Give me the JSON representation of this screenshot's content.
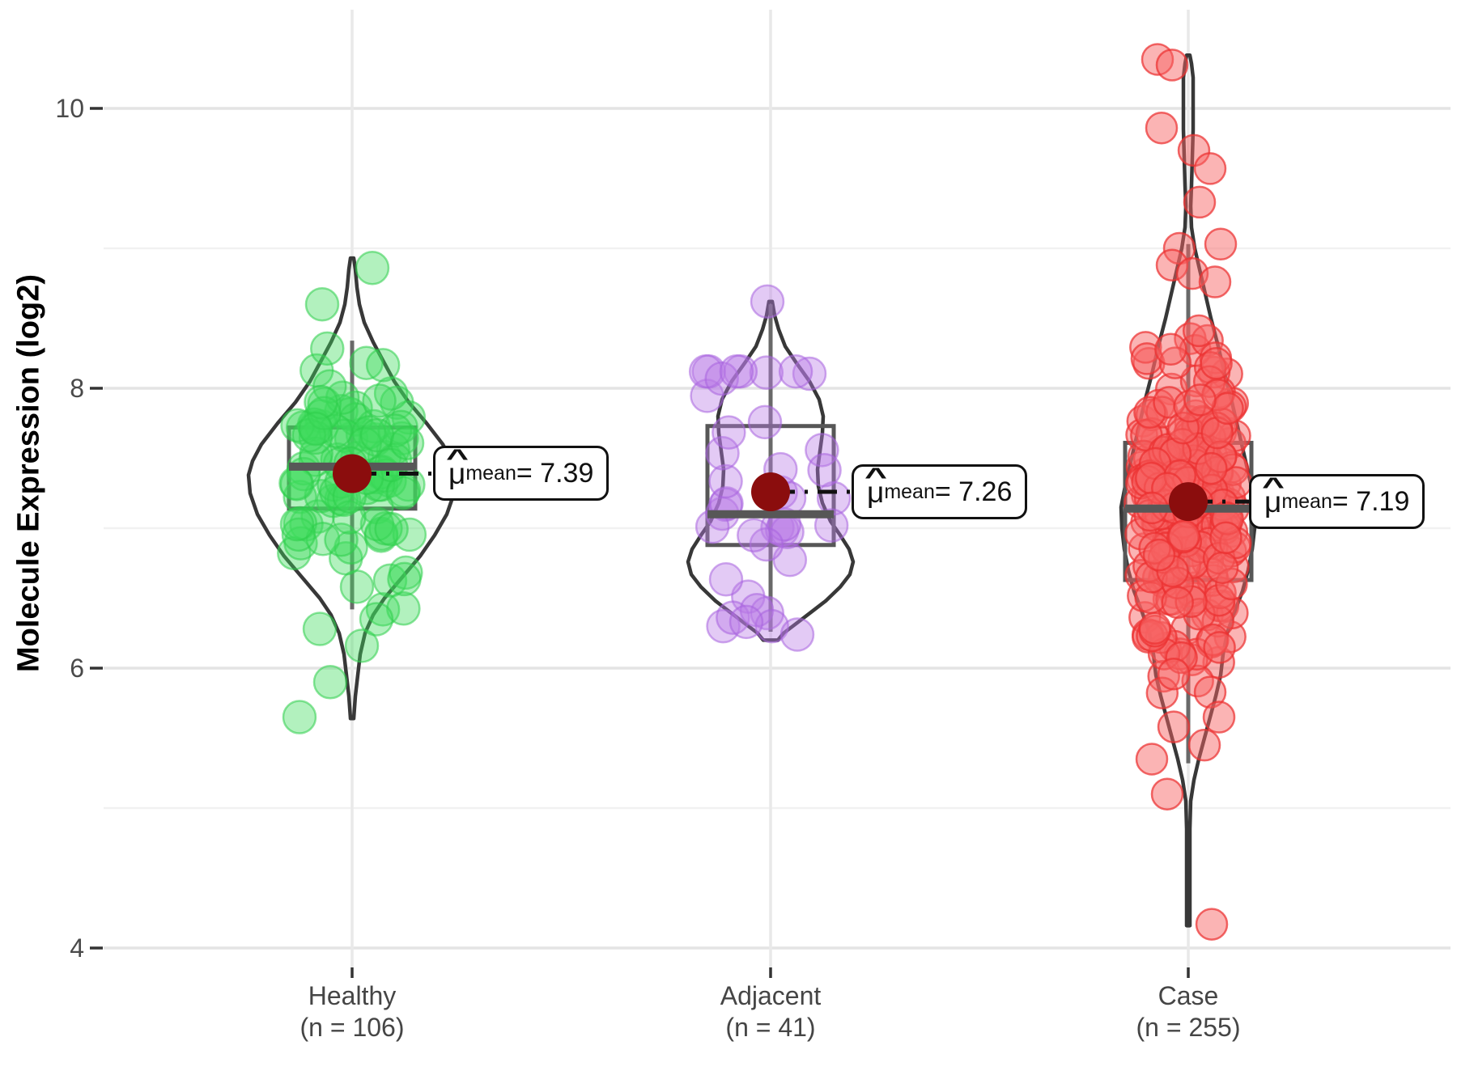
{
  "axis": {
    "y_tick_labels": [
      "10",
      "8",
      "6",
      "4"
    ],
    "y_title": "Molecule Expression (log2)"
  },
  "annotations": [
    {
      "mu": "μ",
      "hat": "^",
      "subscript": "mean",
      "value_text": " = 7.39"
    },
    {
      "mu": "μ",
      "hat": "^",
      "subscript": "mean",
      "value_text": " = 7.26"
    },
    {
      "mu": "μ",
      "hat": "^",
      "subscript": "mean",
      "value_text": " = 7.19"
    }
  ],
  "chart_data": {
    "type": "violin",
    "subtype": "violin + boxplot + jittered points + mean dot (ggstatsplot style)",
    "title": "",
    "xlabel": "",
    "ylabel": "Molecule Expression (log2)",
    "ylim": [
      3.86,
      10.71
    ],
    "y_major_ticks": [
      10,
      8,
      6,
      4
    ],
    "y_minor_gridlines": [
      9,
      7,
      5
    ],
    "grid": "horizontal major+minor light gray; vertical major at each group center; white panel",
    "legend": "none",
    "mean_dot_color": "#8B0D0D",
    "connector_color": "#111111",
    "violin_outline_color": "#383838",
    "box_color": "#575757",
    "categories": [
      "Healthy",
      "Adjacent",
      "Case"
    ],
    "groups": [
      {
        "name": "Healthy",
        "label_line1": "Healthy",
        "label_line2": "(n = 106)",
        "n": 106,
        "mean": 7.39,
        "median": 7.44,
        "q1": 7.14,
        "q3": 7.72,
        "whisker_low": 6.42,
        "whisker_high": 8.34,
        "min": 5.64,
        "max": 8.93,
        "point_fill": "rgba(62,220,92,0.40)",
        "point_stroke": "rgba(45,205,75,0.55)",
        "violin_profile": [
          [
            8.93,
            2
          ],
          [
            8.85,
            4
          ],
          [
            8.72,
            6
          ],
          [
            8.6,
            9
          ],
          [
            8.47,
            15
          ],
          [
            8.33,
            26
          ],
          [
            8.2,
            38
          ],
          [
            8.05,
            52
          ],
          [
            7.9,
            70
          ],
          [
            7.75,
            92
          ],
          [
            7.6,
            112
          ],
          [
            7.48,
            123
          ],
          [
            7.38,
            128
          ],
          [
            7.25,
            126
          ],
          [
            7.1,
            117
          ],
          [
            6.95,
            102
          ],
          [
            6.8,
            84
          ],
          [
            6.65,
            62
          ],
          [
            6.5,
            40
          ],
          [
            6.38,
            26
          ],
          [
            6.25,
            16
          ],
          [
            6.1,
            10
          ],
          [
            5.95,
            7
          ],
          [
            5.8,
            4
          ],
          [
            5.64,
            2
          ]
        ],
        "outlier_points": [
          [
            25,
            8.86
          ],
          [
            -37,
            8.6
          ],
          [
            -65,
            5.65
          ],
          [
            -27,
            5.9
          ],
          [
            12,
            6.16
          ],
          [
            -40,
            6.28
          ],
          [
            30,
            6.35
          ]
        ],
        "cloud": {
          "count": 99,
          "mean": 7.42,
          "sd": 0.42,
          "clip": [
            6.42,
            8.45
          ],
          "seed": 7
        }
      },
      {
        "name": "Adjacent",
        "label_line1": "Adjacent",
        "label_line2": "(n = 41)",
        "n": 41,
        "mean": 7.26,
        "median": 7.1,
        "q1": 6.88,
        "q3": 7.73,
        "whisker_low": 6.26,
        "whisker_high": 8.6,
        "min": 6.2,
        "max": 8.62,
        "point_fill": "rgba(186,122,230,0.40)",
        "point_stroke": "rgba(168,98,222,0.55)",
        "violin_profile": [
          [
            8.62,
            2
          ],
          [
            8.52,
            5
          ],
          [
            8.42,
            10
          ],
          [
            8.3,
            18
          ],
          [
            8.18,
            32
          ],
          [
            8.05,
            48
          ],
          [
            7.92,
            60
          ],
          [
            7.8,
            65
          ],
          [
            7.68,
            64
          ],
          [
            7.55,
            61
          ],
          [
            7.42,
            58
          ],
          [
            7.3,
            59
          ],
          [
            7.18,
            64
          ],
          [
            7.05,
            74
          ],
          [
            6.95,
            86
          ],
          [
            6.85,
            97
          ],
          [
            6.76,
            102
          ],
          [
            6.67,
            98
          ],
          [
            6.58,
            86
          ],
          [
            6.48,
            68
          ],
          [
            6.4,
            50
          ],
          [
            6.32,
            32
          ],
          [
            6.25,
            16
          ],
          [
            6.2,
            9
          ]
        ],
        "outlier_points": [
          [
            -4,
            8.62
          ],
          [
            33,
            6.24
          ],
          [
            -30,
            6.33
          ]
        ],
        "cloud": {
          "count": 38,
          "mean": 7.2,
          "sd": 0.6,
          "clip": [
            6.3,
            8.12
          ],
          "seed": 13
        }
      },
      {
        "name": "Case",
        "label_line1": "Case",
        "label_line2": "(n = 255)",
        "n": 255,
        "mean": 7.19,
        "median": 7.14,
        "q1": 6.63,
        "q3": 7.61,
        "whisker_low": 5.32,
        "whisker_high": 9.03,
        "min": 4.16,
        "max": 10.45,
        "point_fill": "rgba(246,98,98,0.48)",
        "point_stroke": "rgba(235,48,48,0.72)",
        "violin_profile": [
          [
            10.38,
            2
          ],
          [
            10.32,
            4
          ],
          [
            10.22,
            6
          ],
          [
            10.05,
            6
          ],
          [
            9.85,
            6
          ],
          [
            9.65,
            5
          ],
          [
            9.45,
            4
          ],
          [
            9.3,
            3
          ],
          [
            9.15,
            4
          ],
          [
            9.0,
            8
          ],
          [
            8.85,
            14
          ],
          [
            8.7,
            20
          ],
          [
            8.5,
            28
          ],
          [
            8.3,
            37
          ],
          [
            8.1,
            45
          ],
          [
            7.9,
            54
          ],
          [
            7.7,
            62
          ],
          [
            7.5,
            70
          ],
          [
            7.3,
            78
          ],
          [
            7.15,
            83
          ],
          [
            7.0,
            82
          ],
          [
            6.85,
            79
          ],
          [
            6.7,
            74
          ],
          [
            6.55,
            67
          ],
          [
            6.4,
            57
          ],
          [
            6.25,
            48
          ],
          [
            6.1,
            43
          ],
          [
            5.95,
            40
          ],
          [
            5.8,
            34
          ],
          [
            5.65,
            27
          ],
          [
            5.5,
            20
          ],
          [
            5.35,
            13
          ],
          [
            5.2,
            7
          ],
          [
            5.05,
            3
          ],
          [
            4.85,
            2
          ],
          [
            4.55,
            2
          ],
          [
            4.3,
            2
          ],
          [
            4.16,
            2
          ]
        ],
        "outlier_points": [
          [
            -38,
            10.35
          ],
          [
            -20,
            10.31
          ],
          [
            -33,
            9.86
          ],
          [
            7,
            9.7
          ],
          [
            27,
            9.57
          ],
          [
            14,
            9.33
          ],
          [
            40,
            9.03
          ],
          [
            -11,
            9.0
          ],
          [
            -20,
            8.88
          ],
          [
            5,
            8.82
          ],
          [
            33,
            8.76
          ],
          [
            29,
            4.17
          ],
          [
            -26,
            5.1
          ],
          [
            -45,
            5.35
          ],
          [
            20,
            5.45
          ],
          [
            -18,
            5.58
          ],
          [
            38,
            5.65
          ]
        ],
        "cloud": {
          "count": 238,
          "mean": 7.15,
          "sd": 0.55,
          "clip": [
            5.3,
            8.6
          ],
          "seed": 29
        }
      }
    ],
    "annotation_values": [
      "7.39",
      "7.26",
      "7.19"
    ]
  }
}
